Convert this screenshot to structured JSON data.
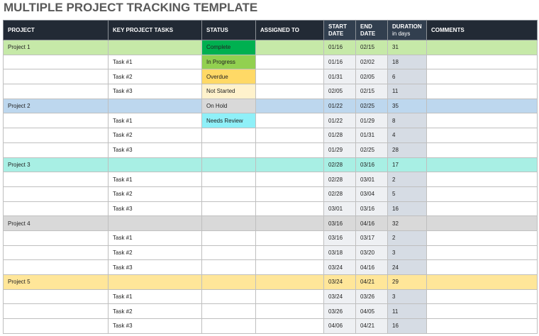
{
  "header": {
    "title": "MULTIPLE PROJECT TRACKING TEMPLATE"
  },
  "table": {
    "columns": [
      {
        "label": "PROJECT"
      },
      {
        "label": "KEY PROJECT TASKS"
      },
      {
        "label": "STATUS"
      },
      {
        "label": "ASSIGNED TO"
      },
      {
        "label": "START DATE"
      },
      {
        "label": "END DATE"
      },
      {
        "label": "DURATION",
        "note": "in days"
      },
      {
        "label": "COMMENTS"
      }
    ],
    "rows": [
      {
        "project": "Project 1",
        "color": "#c6e9a8",
        "status": "Complete",
        "status_color": "#00b050",
        "start": "01/16",
        "end": "02/15",
        "duration": 31
      },
      {
        "task": "Task #1",
        "status": "In Progress",
        "status_color": "#92d050",
        "start": "01/16",
        "end": "02/02",
        "duration": 18
      },
      {
        "task": "Task #2",
        "status": "Overdue",
        "status_color": "#ffd966",
        "start": "01/31",
        "end": "02/05",
        "duration": 6
      },
      {
        "task": "Task #3",
        "status": "Not Started",
        "status_color": "#fff2cc",
        "start": "02/05",
        "end": "02/15",
        "duration": 11
      },
      {
        "project": "Project 2",
        "color": "#bdd7ee",
        "status": "On Hold",
        "status_color": "#d9d9d9",
        "start": "01/22",
        "end": "02/25",
        "duration": 35
      },
      {
        "task": "Task #1",
        "status": "Needs Review",
        "status_color": "#8ff0f8",
        "start": "01/22",
        "end": "01/29",
        "duration": 8
      },
      {
        "task": "Task #2",
        "start": "01/28",
        "end": "01/31",
        "duration": 4
      },
      {
        "task": "Task #3",
        "start": "01/29",
        "end": "02/25",
        "duration": 28
      },
      {
        "project": "Project 3",
        "color": "#a8efe4",
        "start": "02/28",
        "end": "03/16",
        "duration": 17
      },
      {
        "task": "Task #1",
        "start": "02/28",
        "end": "03/01",
        "duration": 2
      },
      {
        "task": "Task #2",
        "start": "02/28",
        "end": "03/04",
        "duration": 5
      },
      {
        "task": "Task #3",
        "start": "03/01",
        "end": "03/16",
        "duration": 16
      },
      {
        "project": "Project 4",
        "color": "#d9d9d9",
        "start": "03/16",
        "end": "04/16",
        "duration": 32
      },
      {
        "task": "Task #1",
        "start": "03/16",
        "end": "03/17",
        "duration": 2
      },
      {
        "task": "Task #2",
        "start": "03/18",
        "end": "03/20",
        "duration": 3
      },
      {
        "task": "Task #3",
        "start": "03/24",
        "end": "04/16",
        "duration": 24
      },
      {
        "project": "Project 5",
        "color": "#ffe699",
        "start": "03/24",
        "end": "04/21",
        "duration": 29
      },
      {
        "task": "Task #1",
        "start": "03/24",
        "end": "03/26",
        "duration": 3
      },
      {
        "task": "Task #2",
        "start": "03/26",
        "end": "04/05",
        "duration": 11
      },
      {
        "task": "Task #3",
        "start": "04/06",
        "end": "04/21",
        "duration": 16
      }
    ]
  }
}
